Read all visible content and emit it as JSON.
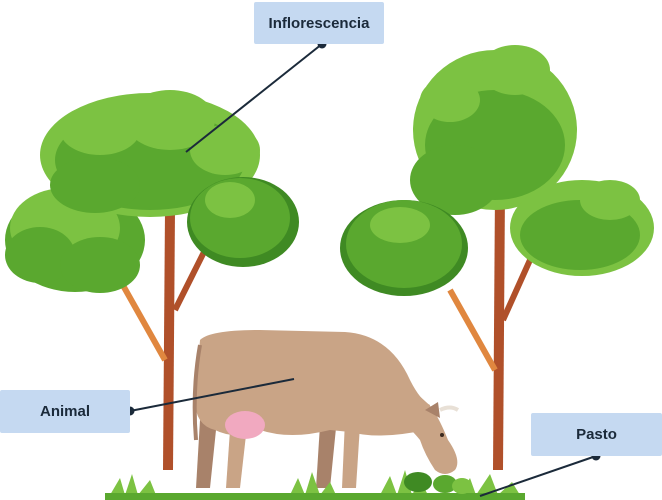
{
  "labels": {
    "inflorescence": "Inflorescencia",
    "animal": "Animal",
    "grass": "Pasto"
  },
  "colors": {
    "label_bg": "#c5d9f1",
    "leader_line": "#1b2a3a",
    "foliage_light": "#7cc242",
    "foliage_mid": "#5aa82f",
    "foliage_dark": "#3f8a23",
    "trunk": "#b0502a",
    "branch": "#e0873f",
    "cow_body": "#c9a486",
    "cow_shadow": "#a8826a",
    "udder": "#f1a9c0",
    "grass": "#7cc242"
  }
}
